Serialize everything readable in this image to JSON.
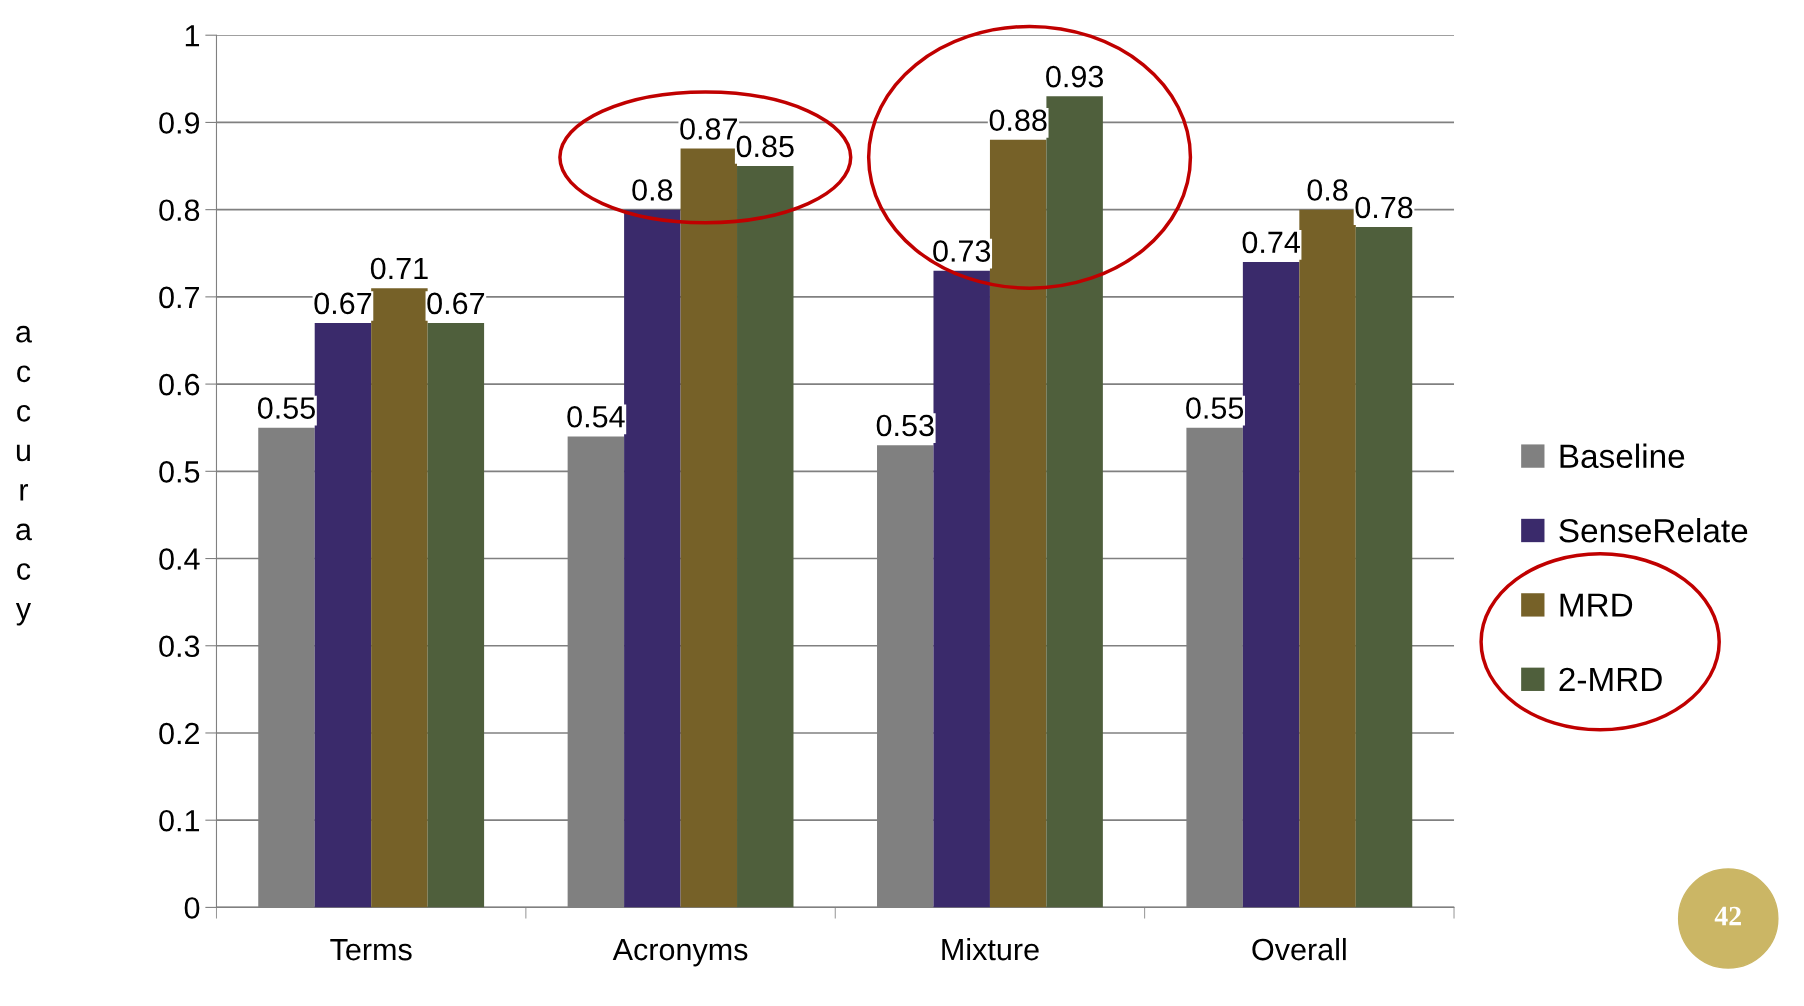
{
  "chart_data": {
    "type": "bar",
    "ylabel": "accuracy",
    "categories": [
      "Terms",
      "Acronyms",
      "Mixture",
      "Overall"
    ],
    "series": [
      {
        "name": "Baseline",
        "color": "#808080",
        "values": [
          0.55,
          0.54,
          0.53,
          0.55
        ]
      },
      {
        "name": "SenseRelate",
        "color": "#3a2a6b",
        "values": [
          0.67,
          0.8,
          0.73,
          0.74
        ]
      },
      {
        "name": "MRD",
        "color": "#766128",
        "values": [
          0.71,
          0.87,
          0.88,
          0.8
        ]
      },
      {
        "name": "2-MRD",
        "color": "#4f5f3c",
        "values": [
          0.67,
          0.85,
          0.93,
          0.78
        ]
      }
    ],
    "ylim": [
      0,
      1
    ],
    "yticks": [
      0,
      0.1,
      0.2,
      0.3,
      0.4,
      0.5,
      0.6,
      0.7,
      0.8,
      0.9,
      1
    ],
    "grid": "y",
    "legend": "right",
    "data_labels": true,
    "annotations": [
      "42"
    ]
  }
}
